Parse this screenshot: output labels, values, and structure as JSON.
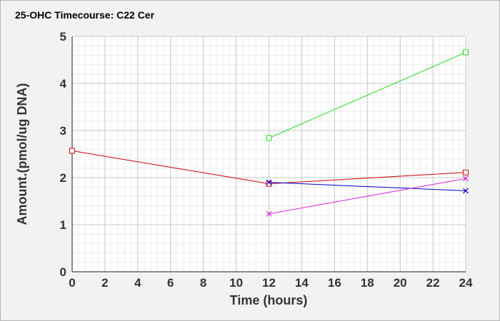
{
  "chart_data": {
    "type": "line",
    "title": "25-OHC Timecourse: C22 Cer",
    "xlabel": "Time (hours)",
    "ylabel": "Amount.(pmol/ug DNA)",
    "xlim": [
      0,
      24
    ],
    "ylim": [
      0,
      5
    ],
    "x_ticks": [
      "0",
      "2",
      "4",
      "6",
      "8",
      "10",
      "12",
      "14",
      "16",
      "18",
      "20",
      "22",
      "24"
    ],
    "y_ticks": [
      "0",
      "1",
      "2",
      "3",
      "4",
      "5"
    ],
    "grid": true,
    "legend": "none",
    "series": [
      {
        "color": "#cc0000",
        "marker": "square",
        "points": [
          [
            0,
            2.57
          ],
          [
            12,
            1.87
          ],
          [
            24,
            2.11
          ]
        ]
      },
      {
        "color": "#22dd22",
        "marker": "square",
        "points": [
          [
            12,
            2.84
          ],
          [
            24,
            4.66
          ]
        ]
      },
      {
        "color": "#0000cc",
        "marker": "x",
        "points": [
          [
            12,
            1.9
          ],
          [
            24,
            1.72
          ]
        ]
      },
      {
        "color": "#dd22dd",
        "marker": "x",
        "points": [
          [
            12,
            1.23
          ],
          [
            24,
            1.98
          ]
        ]
      }
    ]
  }
}
